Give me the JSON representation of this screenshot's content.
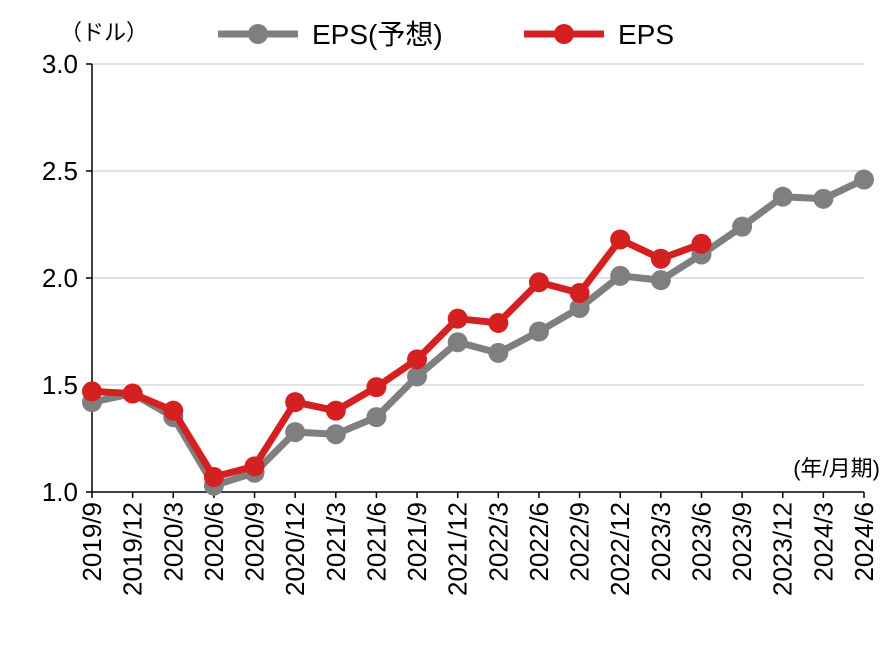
{
  "chart_data": {
    "type": "line",
    "y_unit_label": "（ドル）",
    "x_unit_label": "(年/月期)",
    "categories": [
      "2019/9",
      "2019/12",
      "2020/3",
      "2020/6",
      "2020/9",
      "2020/12",
      "2021/3",
      "2021/6",
      "2021/9",
      "2021/12",
      "2022/3",
      "2022/6",
      "2022/9",
      "2022/12",
      "2023/3",
      "2023/6",
      "2023/9",
      "2023/12",
      "2024/3",
      "2024/6"
    ],
    "ylim": [
      1.0,
      3.0
    ],
    "yticks": [
      "1.0",
      "1.5",
      "2.0",
      "2.5",
      "3.0"
    ],
    "grid": true,
    "legend_position": "top",
    "series": [
      {
        "name": "EPS(予想)",
        "color": "#7f7f7f",
        "values": [
          1.42,
          1.46,
          1.35,
          1.03,
          1.09,
          1.28,
          1.27,
          1.35,
          1.54,
          1.7,
          1.65,
          1.75,
          1.86,
          2.01,
          1.99,
          2.11,
          2.24,
          2.38,
          2.37,
          2.46
        ]
      },
      {
        "name": "EPS",
        "color": "#d42020",
        "values": [
          1.47,
          1.46,
          1.38,
          1.07,
          1.12,
          1.42,
          1.38,
          1.49,
          1.62,
          1.81,
          1.79,
          1.98,
          1.93,
          2.18,
          2.09,
          2.16,
          null,
          null,
          null,
          null
        ]
      }
    ]
  }
}
